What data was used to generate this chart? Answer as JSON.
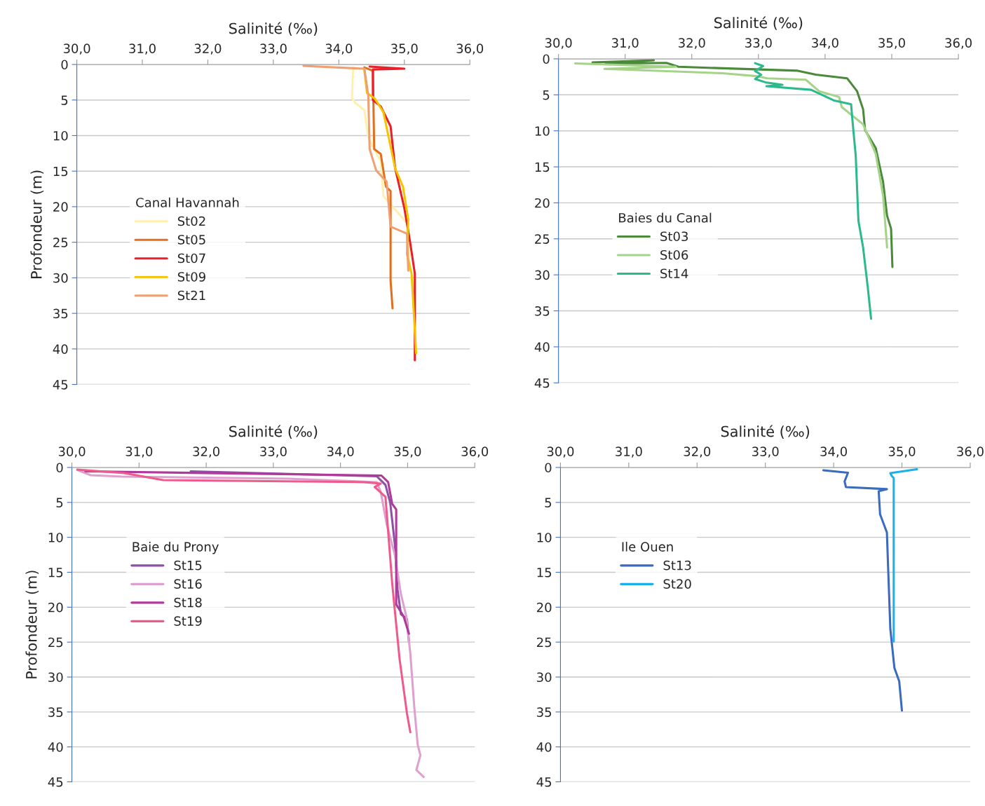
{
  "chart_data": [
    {
      "type": "line",
      "xlabel": "Salinité (‰)",
      "ylabel": "Profondeur (m)",
      "legend_title": "Canal Havannah",
      "legend": "left",
      "grid": "y",
      "xlim": [
        30,
        36
      ],
      "xticks": [
        {
          "value": 30,
          "label": "30,0"
        },
        {
          "value": 31,
          "label": "31,0"
        },
        {
          "value": 32,
          "label": "32,0"
        },
        {
          "value": 33,
          "label": "33,0"
        },
        {
          "value": 34,
          "label": "34,0"
        },
        {
          "value": 35,
          "label": "35,0"
        },
        {
          "value": 36,
          "label": "36,0"
        }
      ],
      "ylim": [
        45,
        0
      ],
      "yticks": [
        0,
        5,
        10,
        15,
        20,
        25,
        30,
        35,
        40,
        45
      ],
      "series": [
        {
          "name": "St02",
          "color": "#fff0b0",
          "x": [
            34.22,
            34.2,
            34.25,
            34.39,
            34.45,
            34.64,
            34.68,
            35.06,
            35.08
          ],
          "values": [
            0.4,
            4.7,
            5.4,
            6.4,
            10.3,
            13.6,
            18.5,
            22.5,
            29.0
          ]
        },
        {
          "name": "St05",
          "color": "#e07020",
          "x": [
            34.39,
            34.52,
            34.54,
            34.64,
            34.72,
            34.79,
            34.79,
            34.82
          ],
          "values": [
            0.4,
            0.9,
            11.9,
            12.6,
            17.2,
            17.8,
            30.4,
            34.3
          ]
        },
        {
          "name": "St07",
          "color": "#e8202a",
          "x": [
            34.47,
            35.0,
            34.52,
            34.52,
            34.64,
            34.79,
            34.86,
            35.0,
            35.09,
            35.16,
            35.16
          ],
          "values": [
            0.3,
            0.6,
            0.7,
            5.0,
            5.9,
            8.7,
            14.6,
            20.2,
            25.1,
            29.4,
            41.6
          ]
        },
        {
          "name": "St09",
          "color": "#f5c400",
          "x": [
            34.39,
            34.43,
            34.55,
            34.68,
            34.86,
            34.98,
            35.06,
            35.04,
            35.11,
            35.18
          ],
          "values": [
            0.8,
            4.0,
            4.8,
            6.7,
            14.6,
            17.2,
            21.8,
            26.7,
            29.4,
            40.6
          ]
        },
        {
          "name": "St21",
          "color": "#f0a070",
          "x": [
            33.46,
            34.39,
            34.45,
            34.47,
            34.57,
            34.73,
            34.79,
            35.04,
            35.06
          ],
          "values": [
            0.2,
            0.6,
            4.4,
            11.9,
            14.9,
            16.5,
            22.8,
            23.8,
            29.0
          ]
        }
      ]
    },
    {
      "type": "line",
      "xlabel": "Salinité (‰)",
      "legend_title": "Baies du Canal",
      "legend": "left",
      "grid": "y",
      "xlim": [
        30,
        36
      ],
      "xticks": [
        {
          "value": 30,
          "label": "30,0"
        },
        {
          "value": 31,
          "label": "31,0"
        },
        {
          "value": 32,
          "label": "32,0"
        },
        {
          "value": 33,
          "label": "33,0"
        },
        {
          "value": 34,
          "label": "34,0"
        },
        {
          "value": 35,
          "label": "35,0"
        },
        {
          "value": 36,
          "label": "36,0"
        }
      ],
      "ylim": [
        45,
        0
      ],
      "yticks": [
        0,
        5,
        10,
        15,
        20,
        25,
        30,
        35,
        40,
        45
      ],
      "series": [
        {
          "name": "St03",
          "color": "#4a8a3a",
          "x": [
            30.51,
            31.43,
            30.71,
            31.62,
            31.8,
            33.59,
            33.86,
            34.33,
            34.48,
            34.57,
            34.6,
            34.76,
            34.87,
            34.93,
            34.99,
            35.01
          ],
          "values": [
            0.5,
            0.2,
            0.65,
            0.57,
            1.1,
            1.65,
            2.2,
            2.7,
            4.5,
            7.0,
            9.9,
            12.4,
            17.1,
            21.8,
            23.6,
            28.9
          ]
        },
        {
          "name": "St06",
          "color": "#a6d38a",
          "x": [
            30.25,
            31.76,
            30.69,
            32.46,
            32.97,
            33.13,
            33.71,
            33.91,
            34.21,
            34.25,
            34.57,
            34.76,
            34.87,
            34.93
          ],
          "values": [
            0.64,
            1.1,
            1.4,
            2.0,
            2.4,
            2.7,
            2.9,
            4.5,
            5.3,
            6.7,
            9.1,
            13.2,
            19.0,
            26.2
          ]
        },
        {
          "name": "St14",
          "color": "#2db98e",
          "x": [
            32.95,
            33.07,
            32.95,
            33.04,
            32.95,
            33.12,
            33.36,
            33.12,
            33.79,
            34.14,
            34.39,
            34.41,
            34.46,
            34.5,
            34.57,
            34.64,
            34.69
          ],
          "values": [
            0.6,
            1.0,
            1.7,
            2.2,
            2.8,
            3.3,
            3.6,
            3.8,
            4.3,
            5.8,
            6.3,
            8.5,
            13.5,
            22.5,
            26.2,
            31.7,
            36.1
          ]
        }
      ]
    },
    {
      "type": "line",
      "xlabel": "Salinité (‰)",
      "ylabel": "Profondeur (m)",
      "legend_title": "Baie du Prony",
      "legend": "top left",
      "grid": "y",
      "xlim": [
        30,
        36
      ],
      "xticks": [
        {
          "value": 30,
          "label": "30,0"
        },
        {
          "value": 31,
          "label": "31,0"
        },
        {
          "value": 32,
          "label": "32,0"
        },
        {
          "value": 33,
          "label": "33,0"
        },
        {
          "value": 34,
          "label": "34,0"
        },
        {
          "value": 35,
          "label": "35,0"
        },
        {
          "value": 36,
          "label": "36,0"
        }
      ],
      "ylim": [
        45,
        0
      ],
      "yticks": [
        0,
        5,
        10,
        15,
        20,
        25,
        30,
        35,
        40,
        45
      ],
      "series": [
        {
          "name": "St15",
          "color": "#8e4fa6",
          "x": [
            31.77,
            34.54,
            34.67,
            34.74,
            34.81,
            34.85,
            34.9,
            34.99,
            35.02
          ],
          "values": [
            0.55,
            1.25,
            2.5,
            5.0,
            11.0,
            17.5,
            21.0,
            21.7,
            25.0
          ]
        },
        {
          "name": "St16",
          "color": "#dfa0cf",
          "x": [
            30.08,
            30.28,
            30.74,
            33.22,
            34.54,
            34.6,
            34.69,
            34.81,
            34.9,
            34.98,
            35.04,
            35.1,
            35.15,
            35.19,
            35.13,
            35.24
          ],
          "values": [
            0.35,
            1.1,
            1.3,
            1.6,
            2.1,
            3.5,
            8.2,
            12.5,
            18.1,
            21.3,
            26.6,
            34.4,
            39.7,
            41.2,
            43.3,
            44.3
          ]
        },
        {
          "name": "St18",
          "color": "#b03a9a",
          "x": [
            30.2,
            34.61,
            34.71,
            34.77,
            34.83,
            34.83,
            34.94,
            35.02
          ],
          "values": [
            0.55,
            1.15,
            2.1,
            5.2,
            6.0,
            19.6,
            21.3,
            23.8
          ]
        },
        {
          "name": "St19",
          "color": "#ef5a8c",
          "x": [
            30.08,
            30.78,
            31.36,
            34.35,
            34.6,
            34.51,
            34.67,
            34.77,
            34.88,
            34.99,
            35.04
          ],
          "values": [
            0.3,
            0.8,
            1.8,
            2.1,
            2.3,
            2.8,
            4.2,
            16.6,
            27.4,
            35.2,
            37.9
          ]
        }
      ]
    },
    {
      "type": "line",
      "xlabel": "Salinité (‰)",
      "legend_title": "Ile Ouen",
      "legend": "top left",
      "grid": "y",
      "xlim": [
        30,
        36
      ],
      "xticks": [
        {
          "value": 30,
          "label": "30,0"
        },
        {
          "value": 31,
          "label": "31,0"
        },
        {
          "value": 32,
          "label": "32,0"
        },
        {
          "value": 33,
          "label": "33,0"
        },
        {
          "value": 34,
          "label": "34,0"
        },
        {
          "value": 35,
          "label": "35,0"
        },
        {
          "value": 36,
          "label": "36,0"
        }
      ],
      "ylim": [
        45,
        0
      ],
      "yticks": [
        0,
        5,
        10,
        15,
        20,
        25,
        30,
        35,
        40,
        45
      ],
      "series": [
        {
          "name": "St13",
          "color": "#3a6bbf",
          "x": [
            33.85,
            34.21,
            34.16,
            34.18,
            34.78,
            34.66,
            34.68,
            34.78,
            34.8,
            34.83,
            34.89,
            34.96,
            35.0
          ],
          "values": [
            0.4,
            0.75,
            2.0,
            2.8,
            3.1,
            3.4,
            6.7,
            9.3,
            14.9,
            23.1,
            28.7,
            30.6,
            34.8
          ]
        },
        {
          "name": "St20",
          "color": "#1ab0e8",
          "x": [
            35.22,
            34.83,
            34.85,
            34.88,
            34.88
          ],
          "values": [
            0.25,
            0.8,
            1.2,
            1.5,
            24.9
          ]
        }
      ]
    }
  ]
}
